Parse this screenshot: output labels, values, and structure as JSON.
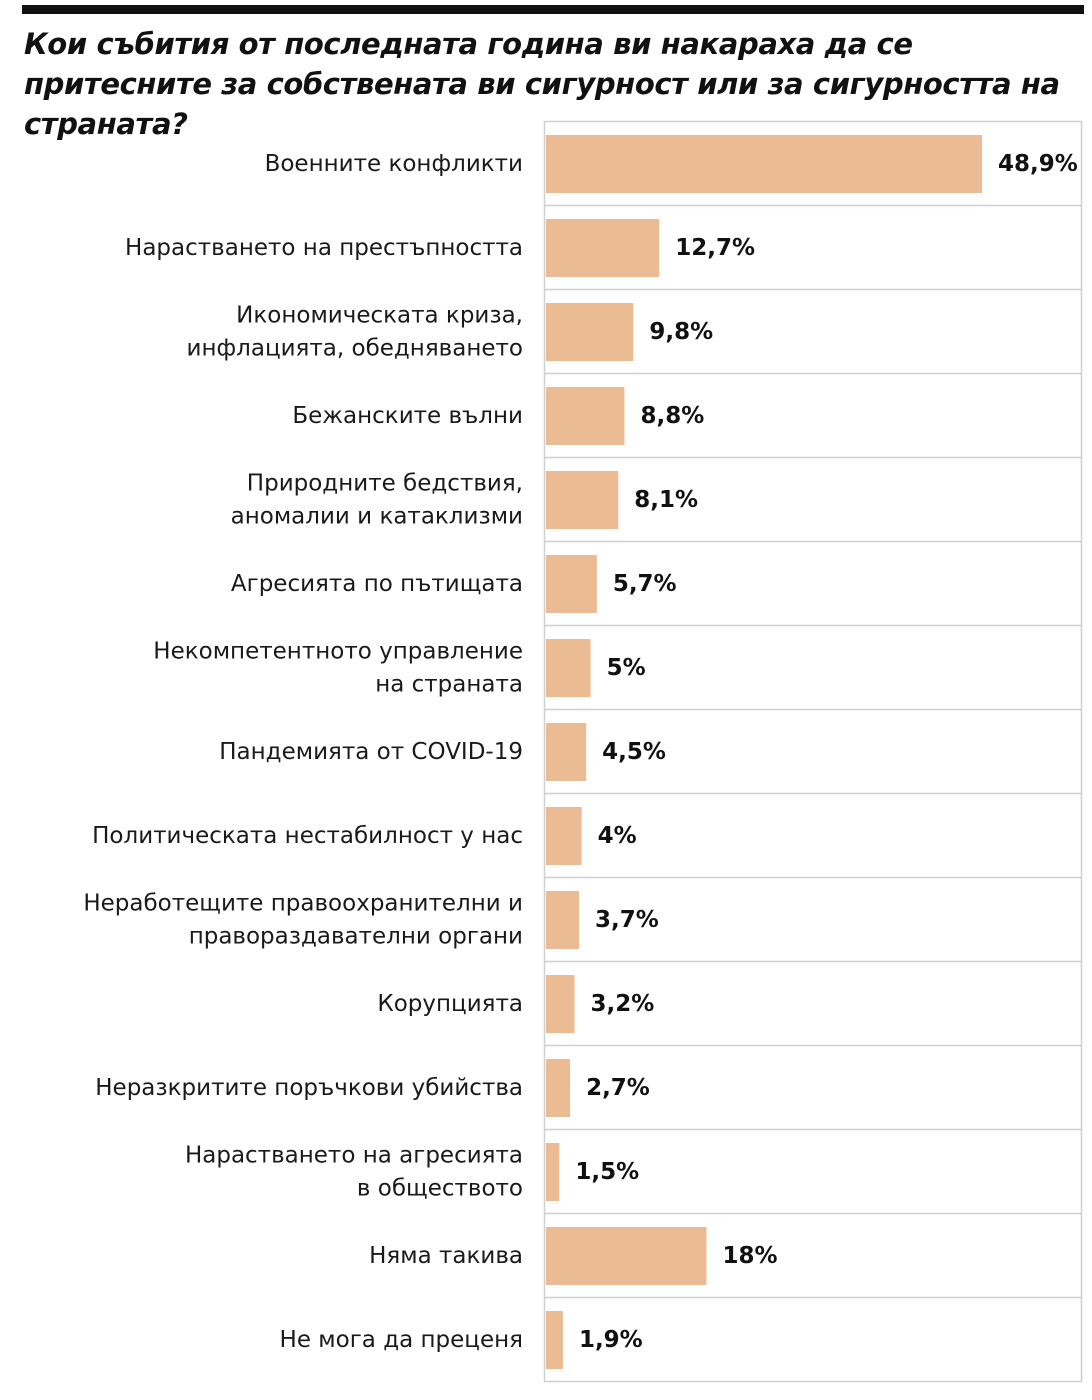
{
  "title": "Кои събития от последната година ви накараха да се притесните за собствената ви сигурност или за сигурността на страната?",
  "colors": {
    "bar": "#ebbc93",
    "frame": "#cfcfcf",
    "text": "#111111",
    "rule": "#111111"
  },
  "chart_data": {
    "type": "bar",
    "orientation": "horizontal",
    "title": "Кои събития от последната година ви накараха да се притесните за собствената ви сигурност или за сигурността на страната?",
    "xlim": [
      0,
      50
    ],
    "grid": false,
    "legend": "none",
    "categories": [
      [
        "Военните конфликти"
      ],
      [
        "Нарастването на престъпността"
      ],
      [
        "Икономическата криза,",
        "инфлацията, обедняването"
      ],
      [
        "Бежанските вълни"
      ],
      [
        "Природните бедствия,",
        "аномалии и катаклизми"
      ],
      [
        "Агресията по пътищата"
      ],
      [
        "Некомпетентното управление",
        "на страната"
      ],
      [
        "Пандемията от COVID-19"
      ],
      [
        "Политическата нестабилност у нас"
      ],
      [
        "Неработещите правоохранителни и",
        "правораздавателни органи"
      ],
      [
        "Корупцията"
      ],
      [
        "Неразкритите поръчкови убийства"
      ],
      [
        "Нарастването на агресията",
        "в обществото"
      ],
      [
        "Няма такива"
      ],
      [
        "Не мога да преценя"
      ]
    ],
    "values": [
      48.9,
      12.7,
      9.8,
      8.8,
      8.1,
      5.7,
      5,
      4.5,
      4,
      3.7,
      3.2,
      2.7,
      1.5,
      18,
      1.9
    ],
    "value_labels": [
      "48,9%",
      "12,7%",
      "9,8%",
      "8,8%",
      "8,1%",
      "5,7%",
      "5%",
      "4,5%",
      "4%",
      "3,7%",
      "3,2%",
      "2,7%",
      "1,5%",
      "18%",
      "1,9%"
    ]
  }
}
